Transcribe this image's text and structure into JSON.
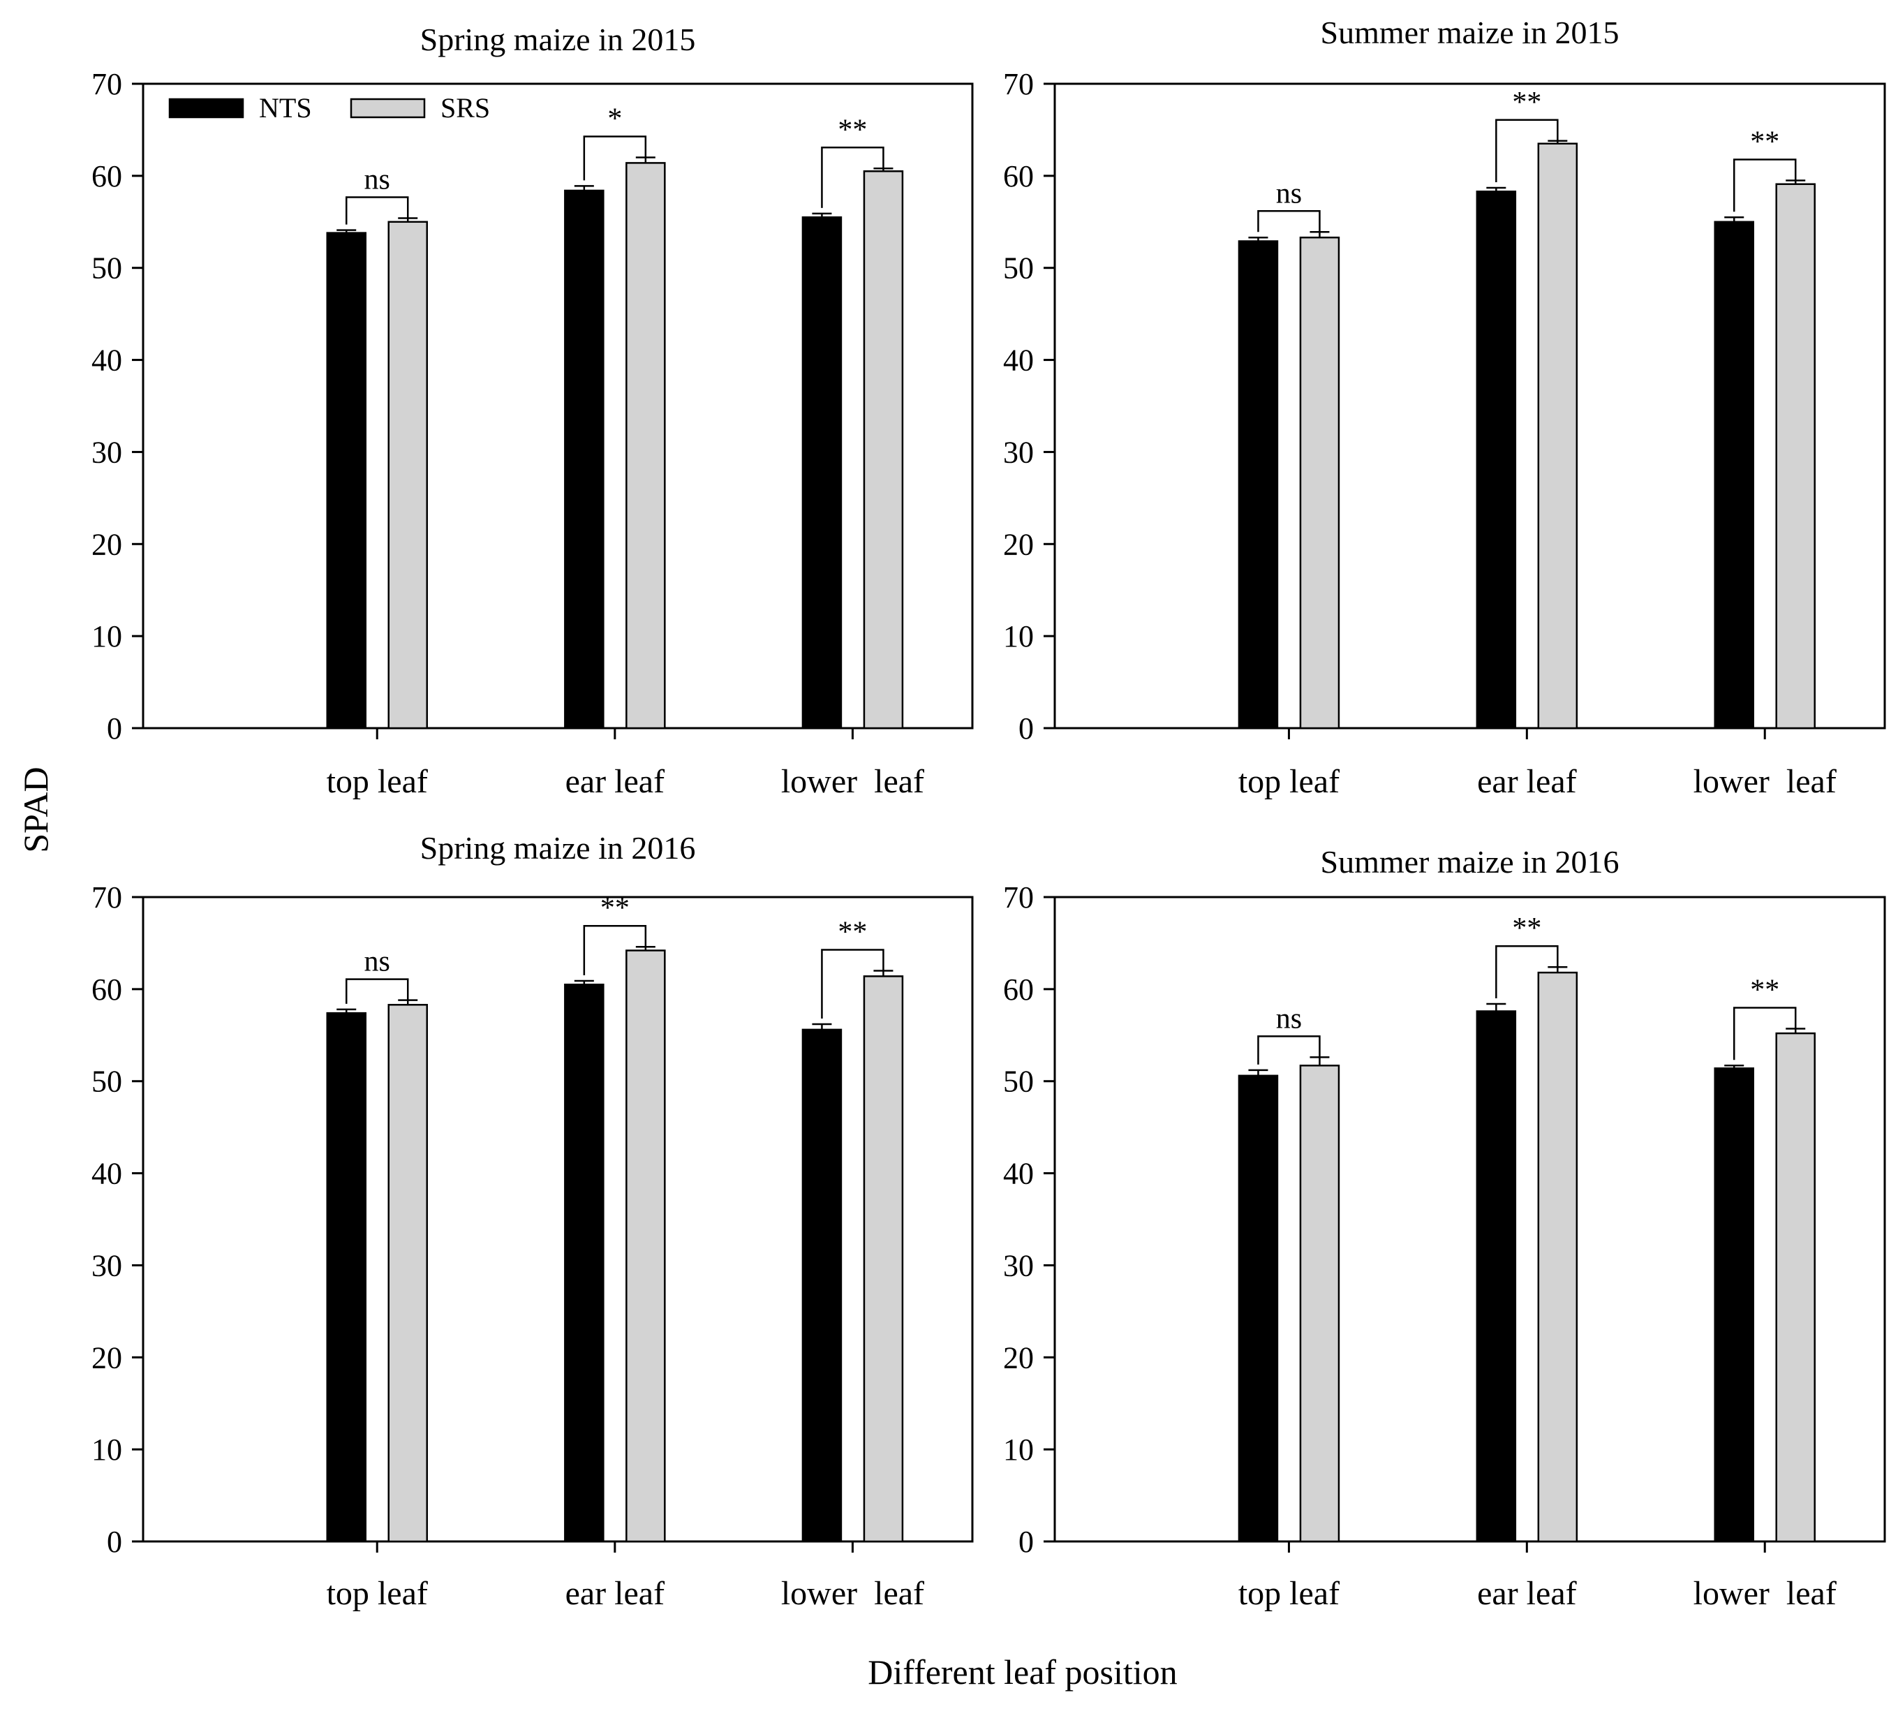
{
  "figure": {
    "ylabel": "SPAD",
    "xlabel": "Different leaf position"
  },
  "legend": [
    {
      "name": "NTS",
      "color": "#000000"
    },
    {
      "name": "SRS",
      "color": "#d3d3d3"
    }
  ],
  "chart_data": [
    {
      "type": "bar",
      "title": "Spring maize in 2015",
      "categories": [
        "top leaf",
        "ear leaf",
        "lower  leaf"
      ],
      "series": [
        {
          "name": "NTS",
          "values": [
            53.8,
            58.4,
            55.5
          ],
          "errors": [
            0.3,
            0.5,
            0.4
          ]
        },
        {
          "name": "SRS",
          "values": [
            55.0,
            61.4,
            60.5
          ],
          "errors": [
            0.4,
            0.6,
            0.3
          ]
        }
      ],
      "significance": [
        "ns",
        "*",
        "**"
      ],
      "ylim": [
        0,
        70
      ],
      "yticks": [
        0,
        10,
        20,
        30,
        40,
        50,
        60,
        70
      ],
      "legend_position": "top-left"
    },
    {
      "type": "bar",
      "title": "Summer maize in 2015",
      "categories": [
        "top leaf",
        "ear leaf",
        "lower  leaf"
      ],
      "series": [
        {
          "name": "NTS",
          "values": [
            52.9,
            58.3,
            55.0
          ],
          "errors": [
            0.4,
            0.4,
            0.5
          ]
        },
        {
          "name": "SRS",
          "values": [
            53.3,
            63.5,
            59.1
          ],
          "errors": [
            0.6,
            0.3,
            0.4
          ]
        }
      ],
      "significance": [
        "ns",
        "**",
        "**"
      ],
      "ylim": [
        0,
        70
      ],
      "yticks": [
        0,
        10,
        20,
        30,
        40,
        50,
        60,
        70
      ]
    },
    {
      "type": "bar",
      "title": "Spring maize in 2016",
      "categories": [
        "top leaf",
        "ear leaf",
        "lower  leaf"
      ],
      "series": [
        {
          "name": "NTS",
          "values": [
            57.4,
            60.5,
            55.6
          ],
          "errors": [
            0.4,
            0.4,
            0.6
          ]
        },
        {
          "name": "SRS",
          "values": [
            58.3,
            64.2,
            61.4
          ],
          "errors": [
            0.5,
            0.4,
            0.6
          ]
        }
      ],
      "significance": [
        "ns",
        "**",
        "**"
      ],
      "ylim": [
        0,
        70
      ],
      "yticks": [
        0,
        10,
        20,
        30,
        40,
        50,
        60,
        70
      ]
    },
    {
      "type": "bar",
      "title": "Summer maize in 2016",
      "categories": [
        "top leaf",
        "ear leaf",
        "lower  leaf"
      ],
      "series": [
        {
          "name": "NTS",
          "values": [
            50.6,
            57.6,
            51.4
          ],
          "errors": [
            0.6,
            0.8,
            0.3
          ]
        },
        {
          "name": "SRS",
          "values": [
            51.7,
            61.8,
            55.2
          ],
          "errors": [
            0.9,
            0.6,
            0.5
          ]
        }
      ],
      "significance": [
        "ns",
        "**",
        "**"
      ],
      "ylim": [
        0,
        70
      ],
      "yticks": [
        0,
        10,
        20,
        30,
        40,
        50,
        60,
        70
      ]
    }
  ]
}
